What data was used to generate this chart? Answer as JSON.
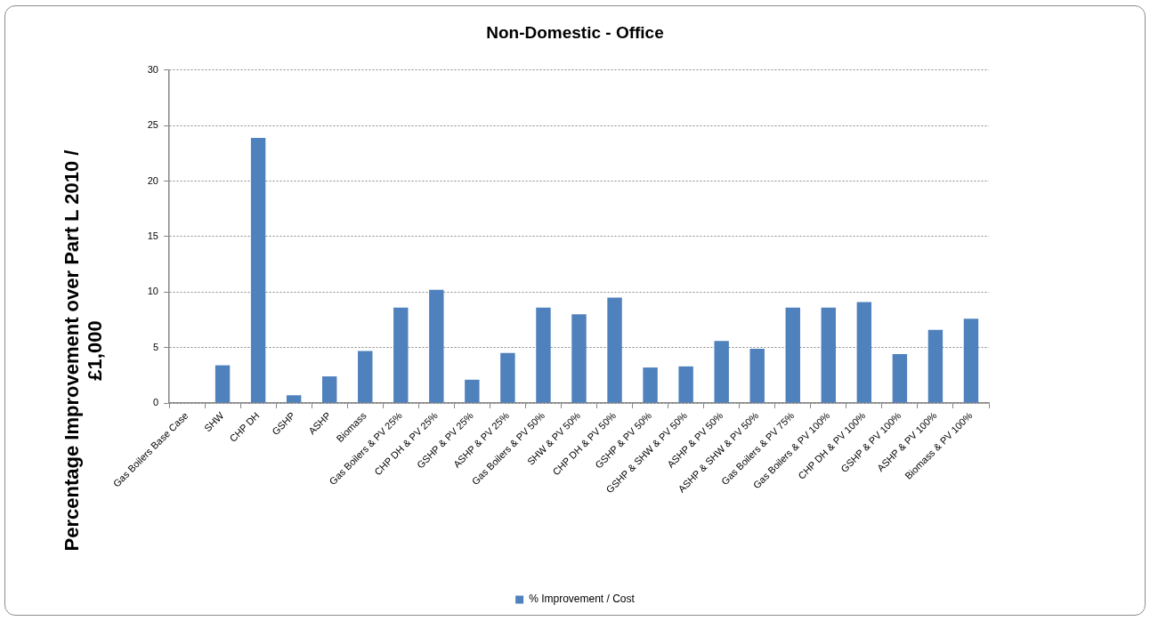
{
  "chart_data": {
    "type": "bar",
    "title": "Non-Domestic - Office",
    "ylabel": "Percentage Improvement over Part L 2010 / £1,000",
    "categories": [
      "Gas Boilers Base Case",
      "SHW",
      "CHP DH",
      "GSHP",
      "ASHP",
      "Biomass",
      "Gas Boilers & PV 25%",
      "CHP DH & PV 25%",
      "GSHP & PV 25%",
      "ASHP & PV 25%",
      "Gas Boilers & PV 50%",
      "SHW & PV 50%",
      "CHP DH & PV 50%",
      "GSHP & PV 50%",
      "GSHP & SHW & PV 50%",
      "ASHP & PV 50%",
      "ASHP & SHW & PV 50%",
      "Gas Boilers & PV 75%",
      "Gas Boilers & PV 100%",
      "CHP DH & PV 100%",
      "GSHP & PV 100%",
      "ASHP & PV 100%",
      "Biomass & PV 100%"
    ],
    "series": [
      {
        "name": "% Improvement / Cost",
        "color": "#4f81bd",
        "values": [
          0,
          3.4,
          23.9,
          0.7,
          2.4,
          4.7,
          8.6,
          10.2,
          2.1,
          4.5,
          8.6,
          8.0,
          9.5,
          3.2,
          3.3,
          5.6,
          4.9,
          8.6,
          8.6,
          9.1,
          4.4,
          6.6,
          7.6
        ]
      }
    ],
    "ylim": [
      0,
      30
    ],
    "yticks": [
      0,
      5,
      10,
      15,
      20,
      25,
      30
    ],
    "grid": "y",
    "legend": "bottom"
  }
}
